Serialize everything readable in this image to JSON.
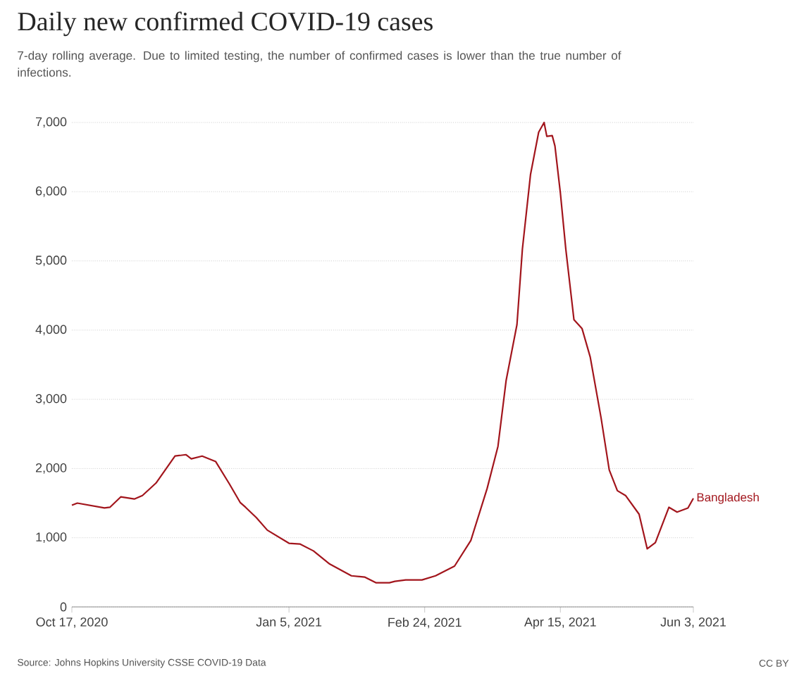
{
  "chart_data": {
    "type": "line",
    "title": "Daily new confirmed COVID-19 cases",
    "subtitle": "7-day rolling average. Due to limited testing, the number of confirmed cases is lower than the true number of infections.",
    "annotations": [
      "Source: Johns Hopkins University CSSE COVID-19 Data",
      "CC BY"
    ],
    "xlim": [
      "2020-10-17",
      "2021-06-03"
    ],
    "xticks": [
      {
        "value": "2020-10-17",
        "label": "Oct 17, 2020"
      },
      {
        "value": "2021-01-05",
        "label": "Jan 5, 2021"
      },
      {
        "value": "2021-02-24",
        "label": "Feb 24, 2021"
      },
      {
        "value": "2021-04-15",
        "label": "Apr 15, 2021"
      },
      {
        "value": "2021-06-03",
        "label": "Jun 3, 2021"
      }
    ],
    "ylim": [
      0,
      7000
    ],
    "yticks": [
      0,
      {
        "value": 1000,
        "label": "1,000"
      },
      {
        "value": 2000,
        "label": "2,000"
      },
      {
        "value": 3000,
        "label": "3,000"
      },
      {
        "value": 4000,
        "label": "4,000"
      },
      {
        "value": 5000,
        "label": "5,000"
      },
      {
        "value": 6000,
        "label": "6,000"
      },
      {
        "value": 7000,
        "label": "7,000"
      }
    ],
    "grid": "y",
    "legend": false,
    "line_style": "solid",
    "series": [
      {
        "name": "Bangladesh",
        "color": "#a2151c",
        "x": [
          "2020-10-17",
          "2020-10-19",
          "2020-10-29",
          "2020-10-31",
          "2020-11-04",
          "2020-11-09",
          "2020-11-12",
          "2020-11-17",
          "2020-11-24",
          "2020-11-28",
          "2020-11-30",
          "2020-12-04",
          "2020-12-09",
          "2020-12-14",
          "2020-12-18",
          "2020-12-20",
          "2020-12-24",
          "2020-12-28",
          "2021-01-05",
          "2021-01-09",
          "2021-01-14",
          "2021-01-20",
          "2021-01-28",
          "2021-02-02",
          "2021-02-06",
          "2021-02-11",
          "2021-02-13",
          "2021-02-17",
          "2021-02-23",
          "2021-02-28",
          "2021-03-07",
          "2021-03-13",
          "2021-03-19",
          "2021-03-23",
          "2021-03-26",
          "2021-03-30",
          "2021-04-01",
          "2021-04-04",
          "2021-04-07",
          "2021-04-09",
          "2021-04-10",
          "2021-04-12",
          "2021-04-13",
          "2021-04-15",
          "2021-04-17",
          "2021-04-19",
          "2021-04-20",
          "2021-04-23",
          "2021-04-26",
          "2021-04-30",
          "2021-05-03",
          "2021-05-06",
          "2021-05-09",
          "2021-05-14",
          "2021-05-17",
          "2021-05-20",
          "2021-05-25",
          "2021-05-28",
          "2021-06-01",
          "2021-06-03"
        ],
        "values": [
          1470,
          1500,
          1430,
          1440,
          1590,
          1560,
          1610,
          1790,
          2180,
          2200,
          2140,
          2180,
          2100,
          1780,
          1510,
          1440,
          1290,
          1110,
          920,
          910,
          810,
          620,
          450,
          430,
          350,
          350,
          370,
          390,
          390,
          450,
          590,
          960,
          1710,
          2320,
          3270,
          4080,
          5170,
          6250,
          6860,
          7000,
          6800,
          6810,
          6660,
          5980,
          5170,
          4490,
          4150,
          4020,
          3610,
          2730,
          1980,
          1680,
          1610,
          1340,
          840,
          930,
          1440,
          1370,
          1430,
          1570
        ]
      }
    ]
  }
}
